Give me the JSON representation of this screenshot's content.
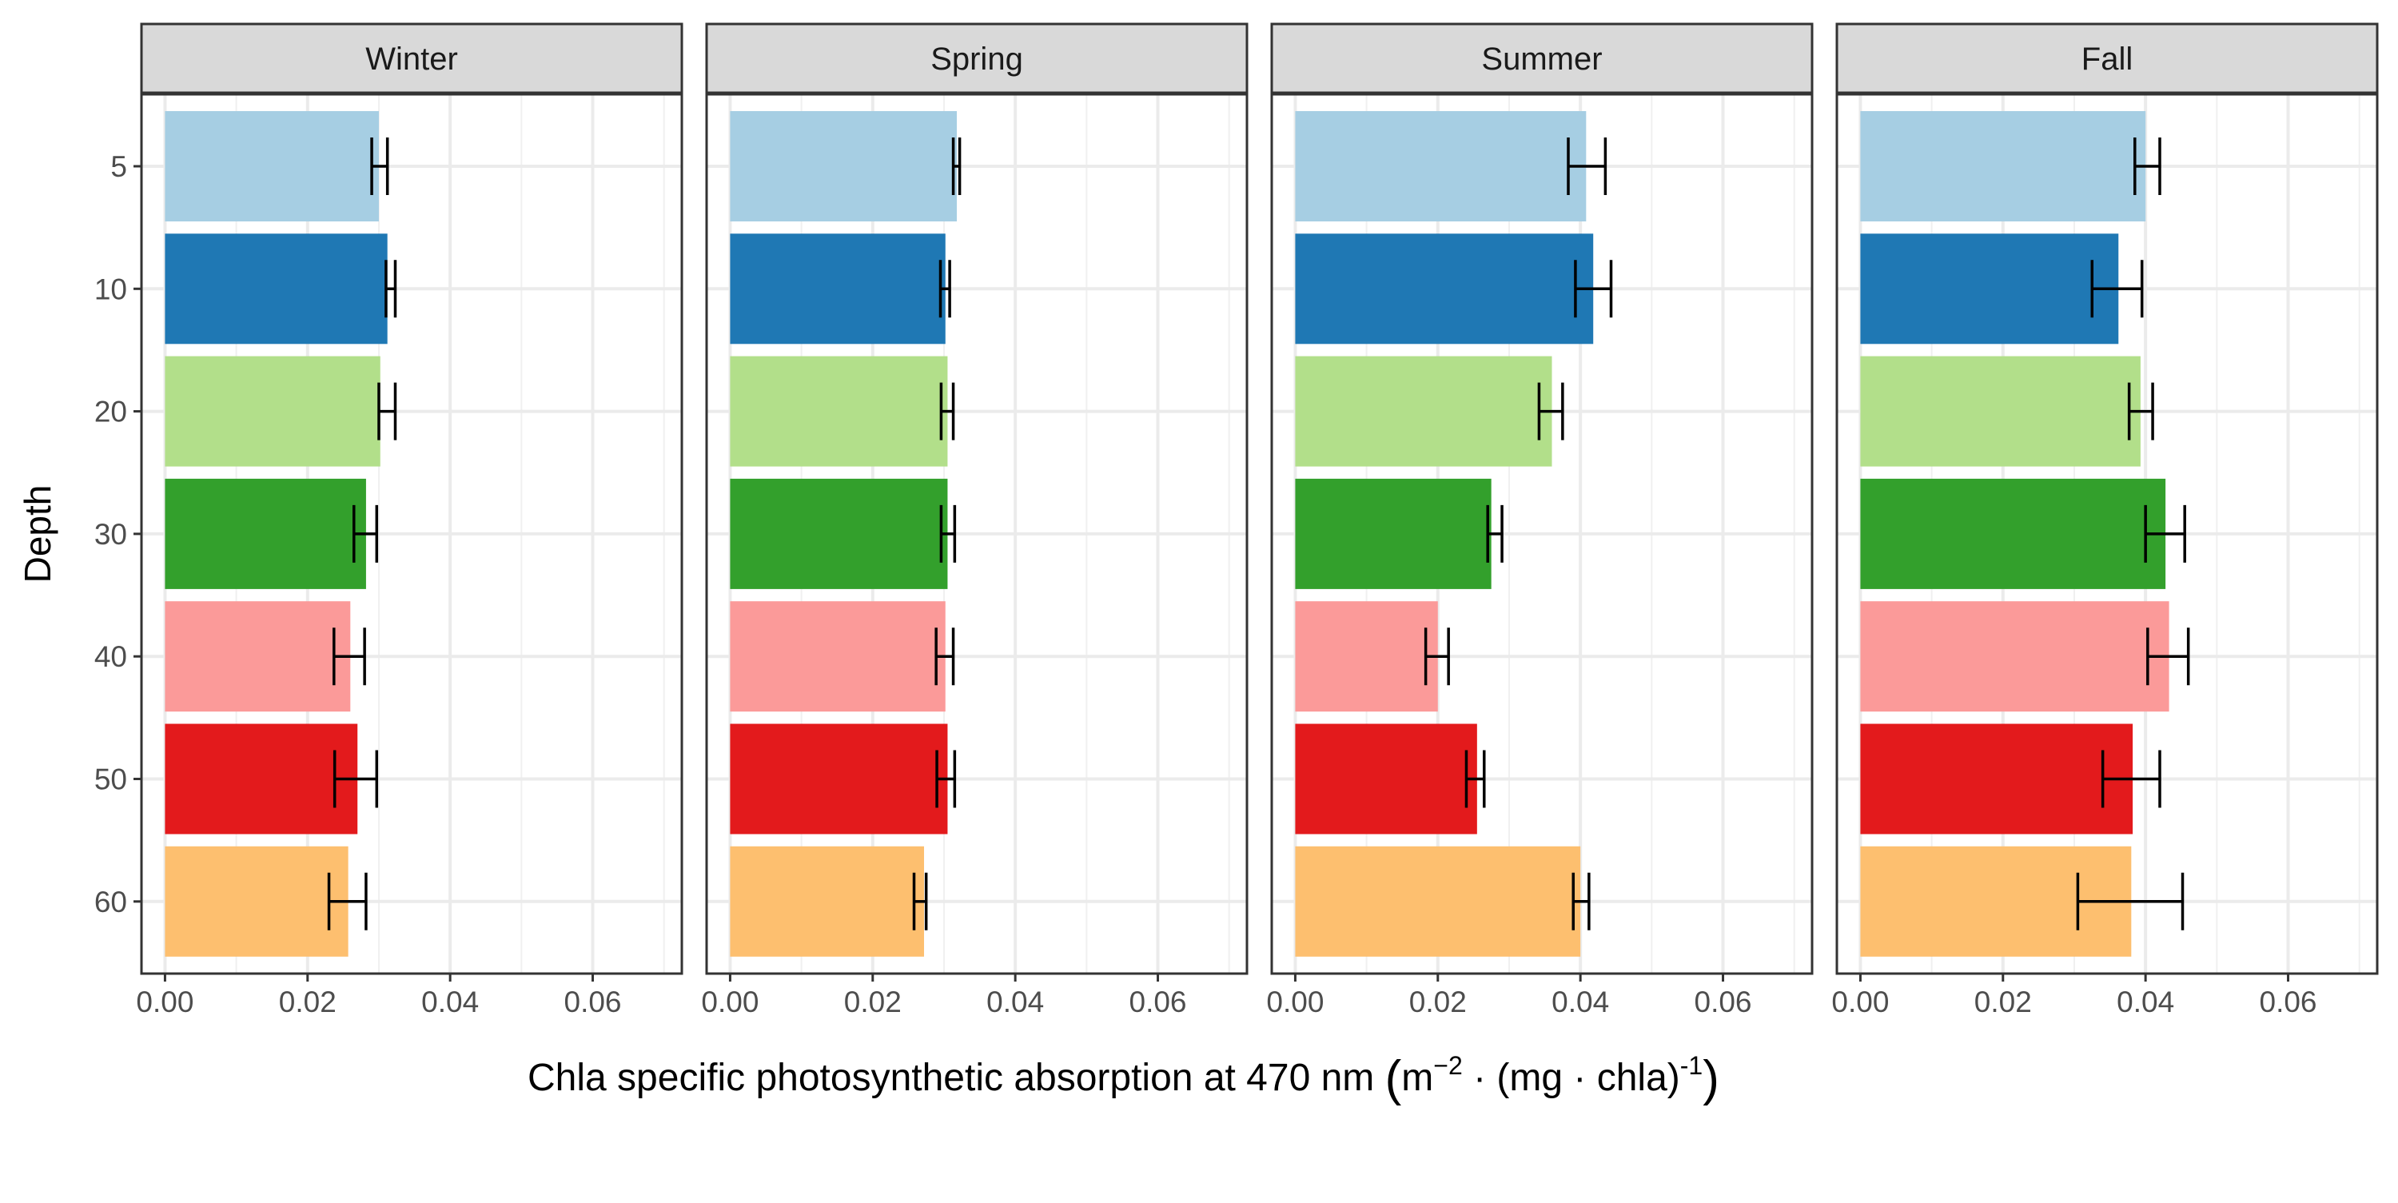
{
  "chart_data": {
    "type": "bar",
    "orientation": "horizontal",
    "facet_by": "season",
    "panels": [
      "Winter",
      "Spring",
      "Summer",
      "Fall"
    ],
    "categories": [
      "5",
      "10",
      "20",
      "30",
      "40",
      "50",
      "60"
    ],
    "colors": [
      "#a6cee3",
      "#1f78b4",
      "#b2df8a",
      "#33a02c",
      "#fb9a99",
      "#e31a1c",
      "#fdbf6f"
    ],
    "xlabel": "Chla specific photosynthetic absorption at 470 nm",
    "xlabel_unit": {
      "lparen": "(",
      "m": "m",
      "m_exp": "−2",
      "dot1": " · (mg ",
      "dot2": "· chla)",
      "chla_exp": "-1",
      "rparen": ")"
    },
    "ylabel": "Depth",
    "xlim": [
      -0.0033,
      0.0725
    ],
    "xticks": [
      0.0,
      0.02,
      0.04,
      0.06
    ],
    "xtick_labels": [
      "0.00",
      "0.02",
      "0.04",
      "0.06"
    ],
    "grid": true,
    "series": [
      {
        "panel": "Winter",
        "values": [
          0.03,
          0.0312,
          0.0302,
          0.0282,
          0.026,
          0.027,
          0.0257
        ],
        "err_low": [
          0.029,
          0.031,
          0.03,
          0.0265,
          0.0237,
          0.0238,
          0.023
        ],
        "err_high": [
          0.0312,
          0.0323,
          0.0323,
          0.0297,
          0.028,
          0.0297,
          0.0282
        ]
      },
      {
        "panel": "Spring",
        "values": [
          0.0318,
          0.0302,
          0.0305,
          0.0305,
          0.0302,
          0.0305,
          0.0272
        ],
        "err_low": [
          0.0313,
          0.0295,
          0.0296,
          0.0296,
          0.0289,
          0.029,
          0.0258
        ],
        "err_high": [
          0.0322,
          0.0308,
          0.0313,
          0.0315,
          0.0313,
          0.0315,
          0.0275
        ]
      },
      {
        "panel": "Summer",
        "values": [
          0.0408,
          0.0418,
          0.036,
          0.0275,
          0.02,
          0.0255,
          0.04
        ],
        "err_low": [
          0.0383,
          0.0393,
          0.0342,
          0.027,
          0.0183,
          0.024,
          0.039
        ],
        "err_high": [
          0.0435,
          0.0443,
          0.0375,
          0.029,
          0.0215,
          0.0265,
          0.0412
        ]
      },
      {
        "panel": "Fall",
        "values": [
          0.04,
          0.0362,
          0.0393,
          0.0428,
          0.0433,
          0.0382,
          0.038
        ],
        "err_low": [
          0.0385,
          0.0325,
          0.0377,
          0.04,
          0.0403,
          0.034,
          0.0305
        ],
        "err_high": [
          0.042,
          0.0395,
          0.041,
          0.0455,
          0.046,
          0.042,
          0.0452
        ]
      }
    ]
  }
}
